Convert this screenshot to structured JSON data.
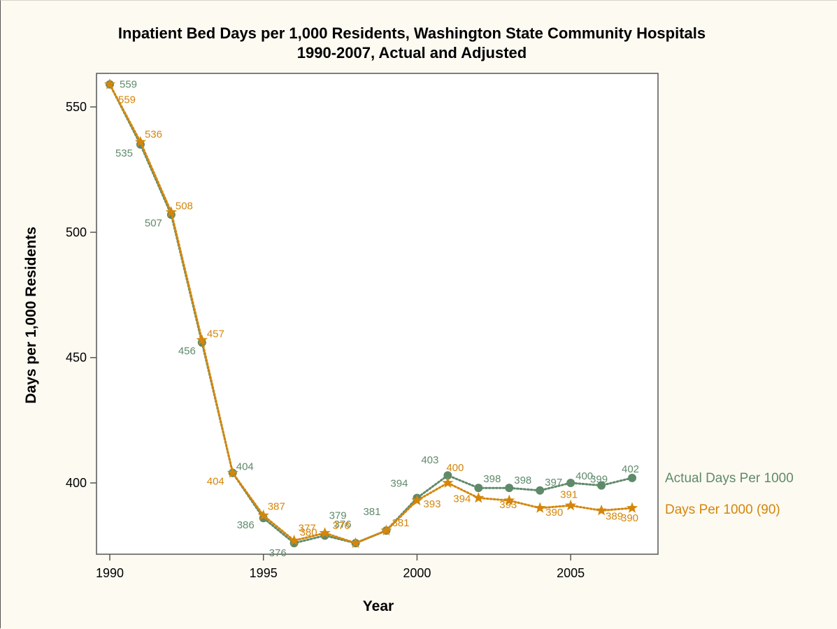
{
  "chart_data": {
    "type": "line",
    "title": [
      "Inpatient Bed Days per 1,000 Residents, Washington State Community Hospitals",
      "1990-2007, Actual and Adjusted"
    ],
    "xlabel": "Year",
    "ylabel": "Days per 1,000 Residents",
    "xlim": [
      1990,
      2007.5
    ],
    "ylim": [
      371,
      563
    ],
    "xticks": [
      1990,
      1995,
      2000,
      2005
    ],
    "yticks": [
      400,
      450,
      500,
      550
    ],
    "x": [
      1990,
      1991,
      1992,
      1993,
      1994,
      1995,
      1996,
      1997,
      1998,
      1999,
      2000,
      2001,
      2002,
      2003,
      2004,
      2005,
      2006,
      2007
    ],
    "grid": false,
    "legend": "right, at line ends",
    "series": [
      {
        "name": "Actual Days Per 1000",
        "color": "#5f8a6a",
        "marker": "circle",
        "values": [
          559,
          535,
          507,
          456,
          404,
          386,
          376,
          379,
          376,
          381,
          394,
          403,
          398,
          398,
          397,
          400,
          399,
          402
        ],
        "labels": [
          "559",
          "535",
          "507",
          "456",
          "404",
          "386",
          "376",
          "379",
          "376",
          "381",
          "394",
          "403",
          "398",
          "398",
          "397",
          "400",
          "399",
          "402"
        ]
      },
      {
        "name": "Days Per 1000 (90)",
        "color": "#d4860b",
        "marker": "star",
        "values": [
          559,
          536,
          508,
          457,
          404,
          387,
          377,
          380,
          376,
          381,
          393,
          400,
          394,
          393,
          390,
          391,
          389,
          390
        ],
        "labels": [
          "559",
          "536",
          "508",
          "457",
          "404",
          "387",
          "377",
          "380",
          "376",
          "381",
          "393",
          "400",
          "394",
          "393",
          "390",
          "391",
          "389",
          "390"
        ]
      }
    ]
  }
}
